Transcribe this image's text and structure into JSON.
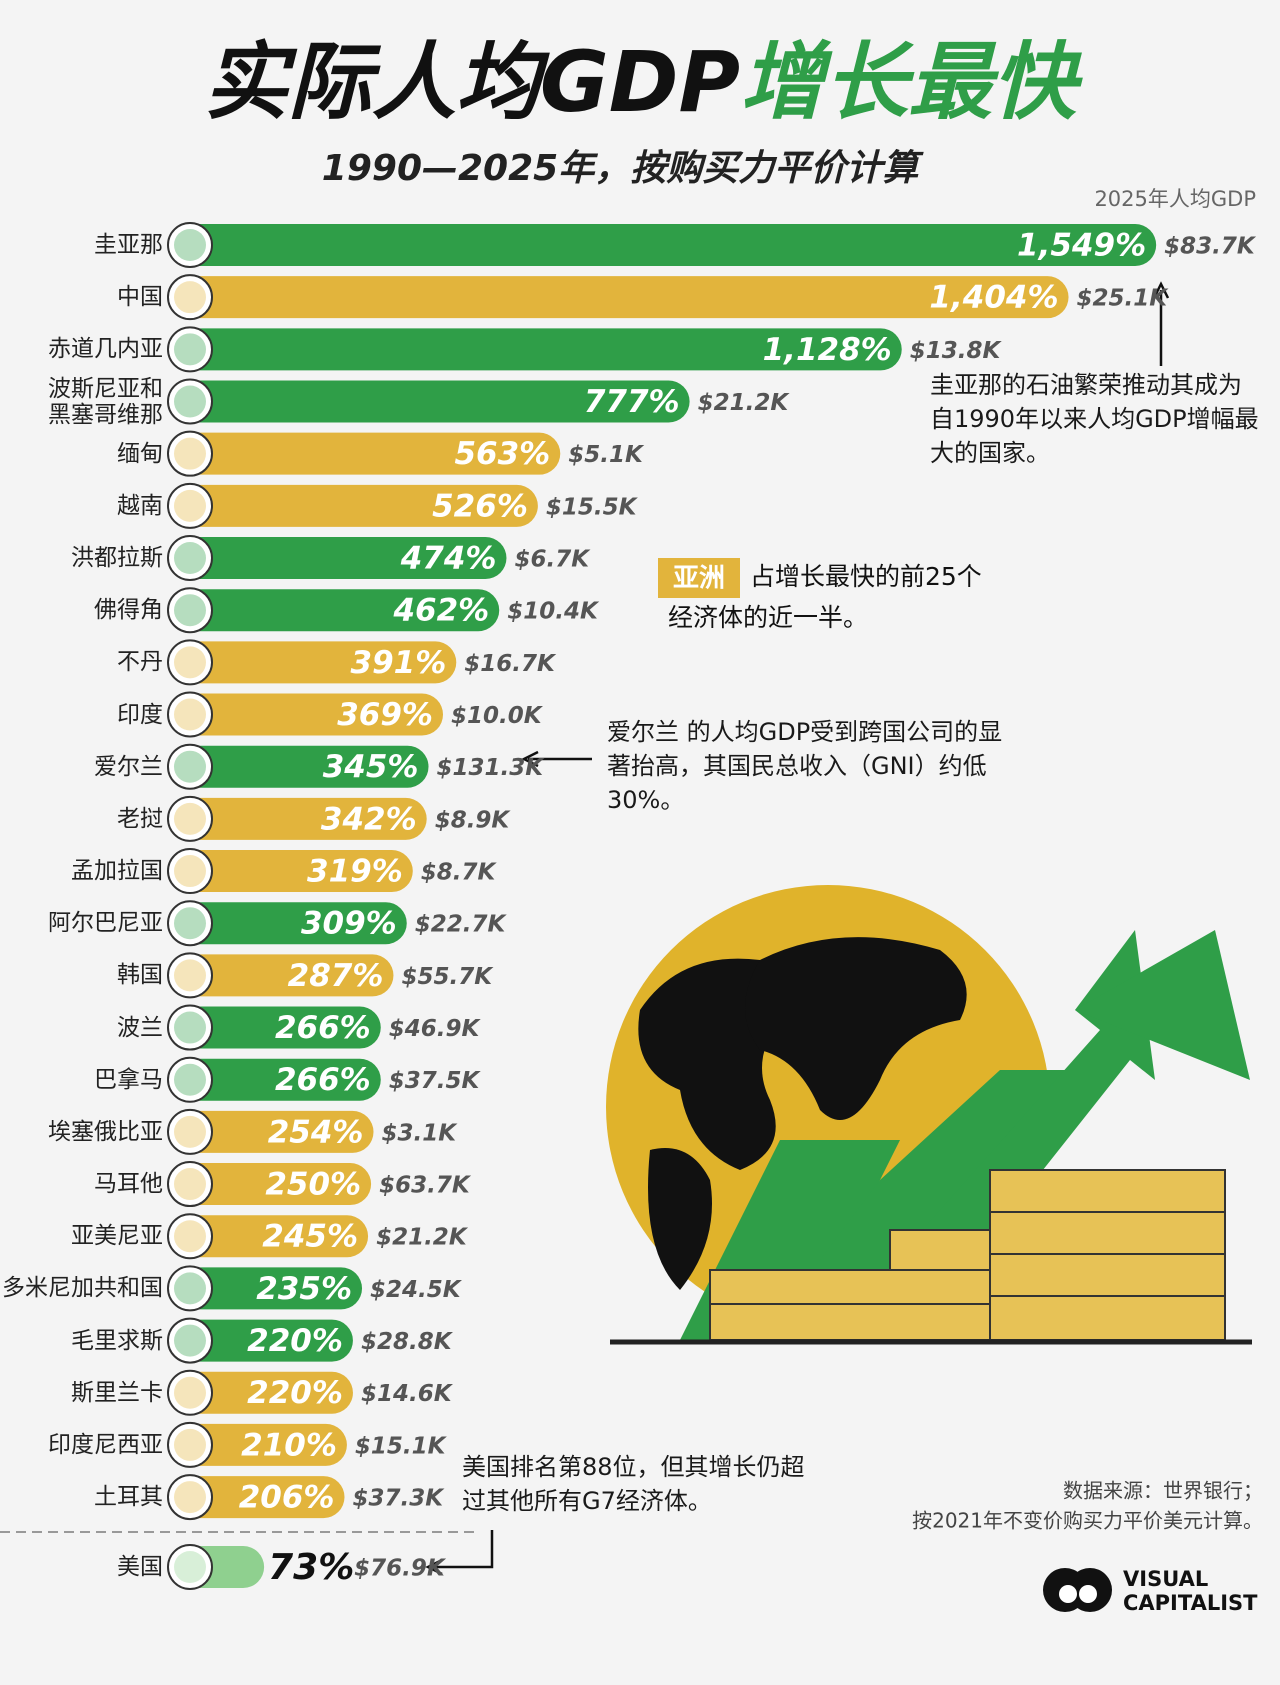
{
  "chart_data": {
    "type": "bar",
    "title": [
      "实际人均GDP",
      "增长最快"
    ],
    "subtitle": "1990—2025年，按购买力平价计算",
    "gdp_header": "2025年人均GDP",
    "categories": [
      "圭亚那",
      "中国",
      "赤道几内亚",
      "波斯尼亚和黑塞哥维那",
      "缅甸",
      "越南",
      "洪都拉斯",
      "佛得角",
      "不丹",
      "印度",
      "爱尔兰",
      "老挝",
      "孟加拉国",
      "阿尔巴尼亚",
      "韩国",
      "波兰",
      "巴拿马",
      "埃塞俄比亚",
      "马耳他",
      "亚美尼亚",
      "多米尼加共和国",
      "毛里求斯",
      "斯里兰卡",
      "印度尼西亚",
      "土耳其"
    ],
    "values": [
      1549,
      1404,
      1128,
      777,
      563,
      526,
      474,
      462,
      391,
      369,
      345,
      342,
      319,
      309,
      287,
      266,
      266,
      254,
      250,
      245,
      235,
      220,
      220,
      210,
      206
    ],
    "value_labels": [
      "1,549%",
      "1,404%",
      "1,128%",
      "777%",
      "563%",
      "526%",
      "474%",
      "462%",
      "391%",
      "369%",
      "345%",
      "342%",
      "319%",
      "309%",
      "287%",
      "266%",
      "266%",
      "254%",
      "250%",
      "245%",
      "235%",
      "220%",
      "220%",
      "210%",
      "206%"
    ],
    "colors": [
      "#2f9e48",
      "#e2b43c",
      "#2f9e48",
      "#2f9e48",
      "#e2b43c",
      "#e2b43c",
      "#2f9e48",
      "#2f9e48",
      "#e2b43c",
      "#e2b43c",
      "#2f9e48",
      "#e2b43c",
      "#e2b43c",
      "#2f9e48",
      "#e2b43c",
      "#2f9e48",
      "#2f9e48",
      "#e2b43c",
      "#e2b43c",
      "#e2b43c",
      "#2f9e48",
      "#2f9e48",
      "#e2b43c",
      "#e2b43c",
      "#e2b43c"
    ],
    "gdp": [
      83700,
      25100,
      13800,
      21200,
      5100,
      15500,
      6700,
      10400,
      16700,
      10000,
      131300,
      8900,
      8700,
      22700,
      55700,
      46900,
      37500,
      3100,
      63700,
      21200,
      24500,
      28800,
      14600,
      15100,
      37300
    ],
    "gdp_labels": [
      "$83.7K",
      "$25.1K",
      "$13.8K",
      "$21.2K",
      "$5.1K",
      "$15.5K",
      "$6.7K",
      "$10.4K",
      "$16.7K",
      "$10.0K",
      "$131.3K",
      "$8.9K",
      "$8.7K",
      "$22.7K",
      "$55.7K",
      "$46.9K",
      "$37.5K",
      "$3.1K",
      "$63.7K",
      "$21.2K",
      "$24.5K",
      "$28.8K",
      "$14.6K",
      "$15.1K",
      "$37.3K"
    ],
    "reference": {
      "category": "美国",
      "value": 73,
      "value_label": "73%",
      "color": "#8fd08f",
      "gdp": 76900,
      "gdp_label": "$76.9K"
    },
    "xlim": [
      0,
      1600
    ],
    "annotations": {
      "guyana": "圭亚那的石油繁荣推动其成为自1990年以来人均GDP增幅最大的国家。",
      "asia_tag": "亚洲",
      "asia_text": [
        "占增长最快的前25个",
        "经济体的近一半。"
      ],
      "ireland": "爱尔兰 的人均GDP受到跨国公司的显著抬高，其国民总收入（GNI）约低30%。",
      "usa": "美国排名第88位，但其增长仍超过其他所有G7经济体。"
    },
    "source": [
      "数据来源：世界银行；",
      "按2021年不变价购买力平价美元计算。"
    ],
    "logo": [
      "VISUAL",
      "CAPITALIST"
    ]
  }
}
